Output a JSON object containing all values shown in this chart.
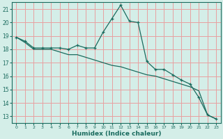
{
  "xlabel": "Humidex (Indice chaleur)",
  "background_color": "#d4eee8",
  "line_color": "#1a6b5e",
  "grid_color": "#e8a0a0",
  "x": [
    0,
    1,
    2,
    3,
    4,
    5,
    6,
    7,
    8,
    9,
    10,
    11,
    12,
    13,
    14,
    15,
    16,
    17,
    18,
    19,
    20,
    21,
    22,
    23
  ],
  "line1": [
    18.9,
    18.6,
    18.1,
    18.1,
    18.1,
    18.1,
    18.0,
    18.3,
    18.1,
    18.1,
    19.3,
    20.3,
    21.3,
    20.1,
    20.0,
    17.1,
    16.5,
    16.5,
    16.1,
    15.7,
    15.4,
    14.4,
    13.1,
    12.8
  ],
  "line2": [
    18.9,
    18.5,
    18.0,
    18.0,
    18.0,
    17.8,
    17.6,
    17.6,
    17.4,
    17.2,
    17.0,
    16.8,
    16.7,
    16.5,
    16.3,
    16.1,
    16.0,
    15.8,
    15.6,
    15.4,
    15.2,
    14.9,
    13.1,
    12.8
  ],
  "ylim": [
    12.5,
    21.5
  ],
  "xlim": [
    -0.5,
    23.5
  ],
  "yticks": [
    13,
    14,
    15,
    16,
    17,
    18,
    19,
    20,
    21
  ],
  "xticks": [
    0,
    1,
    2,
    3,
    4,
    5,
    6,
    7,
    8,
    9,
    10,
    11,
    12,
    13,
    14,
    15,
    16,
    17,
    18,
    19,
    20,
    21,
    22,
    23
  ]
}
